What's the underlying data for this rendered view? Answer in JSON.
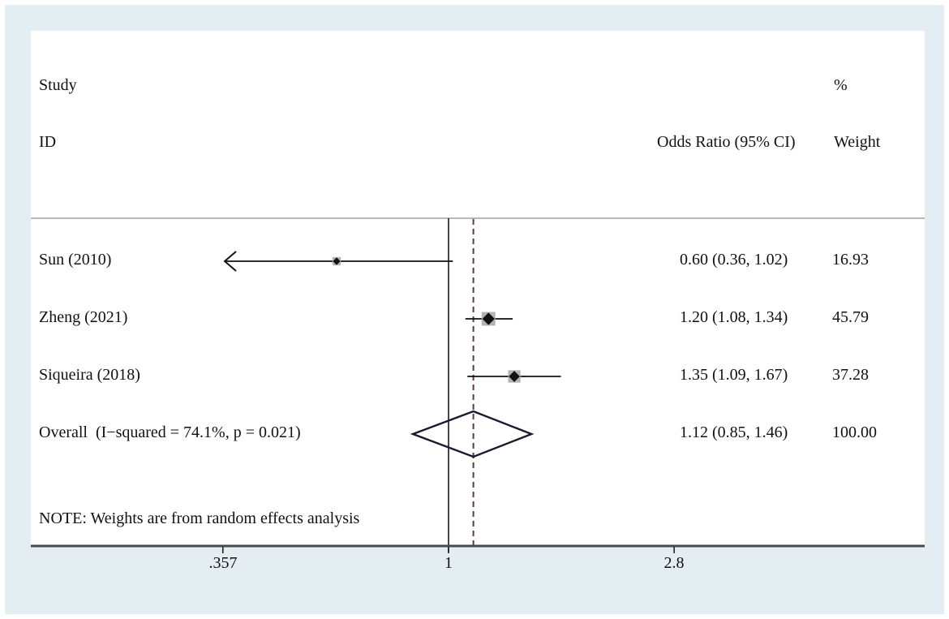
{
  "chart_data": {
    "type": "forest",
    "header": {
      "study_line1": "Study",
      "study_line2": "ID",
      "percent": "%",
      "or_ci": "Odds Ratio (95% CI)",
      "weight": "Weight"
    },
    "rows": [
      {
        "label": "Sun (2010)",
        "or": 0.6,
        "ci_low": 0.36,
        "ci_high": 1.02,
        "or_text": "0.60 (0.36, 1.02)",
        "weight": 16.93,
        "weight_text": "16.93",
        "clipped_left": true
      },
      {
        "label": "Zheng (2021)",
        "or": 1.2,
        "ci_low": 1.08,
        "ci_high": 1.34,
        "or_text": "1.20 (1.08, 1.34)",
        "weight": 45.79,
        "weight_text": "45.79",
        "clipped_left": false
      },
      {
        "label": "Siqueira (2018)",
        "or": 1.35,
        "ci_low": 1.09,
        "ci_high": 1.67,
        "or_text": "1.35 (1.09, 1.67)",
        "weight": 37.28,
        "weight_text": "37.28",
        "clipped_left": false
      }
    ],
    "overall": {
      "label": "Overall  (I−squared = 74.1%, p = 0.021)",
      "or": 1.12,
      "ci_low": 0.85,
      "ci_high": 1.46,
      "or_text": "1.12 (0.85, 1.46)",
      "weight_text": "100.00"
    },
    "note": "NOTE: Weights are from random effects analysis",
    "axis": {
      "scale": "log",
      "ticks": [
        0.357,
        1,
        2.8
      ],
      "tick_labels": [
        ".357",
        "1",
        "2.8"
      ],
      "null_line": 1,
      "dashed_line_at": 1.12
    },
    "colors": {
      "background_margin": "#e4edf2",
      "panel": "#ffffff",
      "separator": "#b9b9b9",
      "axis_line": "#4a4a4a",
      "null_line": "#1a1a1a",
      "dashed_line": "#5a3a3a",
      "ci_line": "#111111",
      "marker_square": "#b3b3b3",
      "marker_diamond": "#111111",
      "overall_diamond": "#1a1a2e"
    }
  }
}
